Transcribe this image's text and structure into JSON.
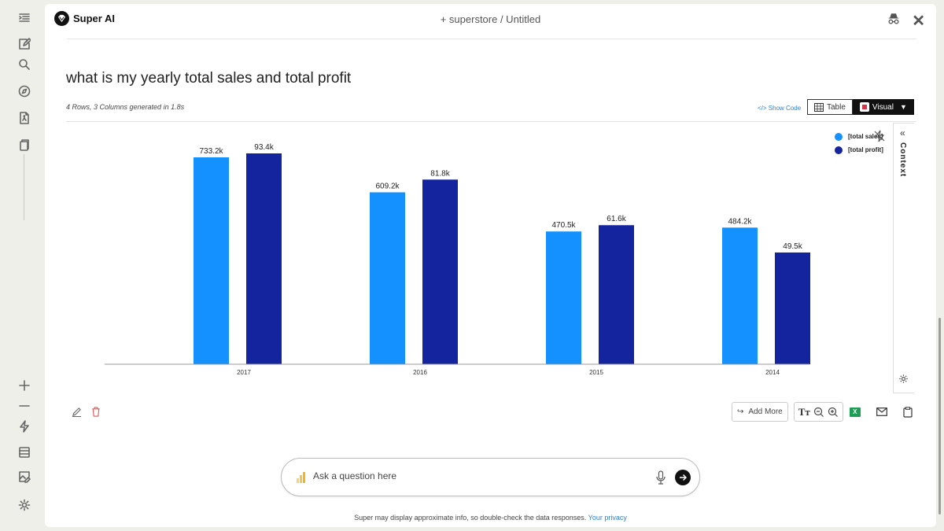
{
  "app": {
    "name": "Super AI",
    "breadcrumb": "+ superstore / Untitled"
  },
  "question": "what is my yearly total sales and total profit",
  "meta": "4 Rows, 3 Columns generated in 1.8s",
  "view": {
    "show_code": "</> Show Code",
    "table_label": "Table",
    "visual_label": "Visual"
  },
  "context_panel": {
    "label": "Context"
  },
  "actions": {
    "add_more": "Add More",
    "text_size": "Tт"
  },
  "ask": {
    "placeholder": "Ask a question here"
  },
  "footer": {
    "disclaimer": "Super may display approximate info, so double-check the data responses.",
    "privacy_link": "Your privacy"
  },
  "icons": [
    "sidebar-toggle-icon",
    "new-note-icon",
    "search-icon",
    "compass-icon",
    "pdf-icon",
    "pages-icon",
    "plus-icon",
    "minus-icon",
    "lightning-icon",
    "table-icon",
    "image-edit-icon",
    "settings-icon",
    "incognito-icon",
    "close-icon",
    "bolt-off-icon",
    "gear-icon",
    "pencil-icon",
    "trash-icon",
    "zoom-out-icon",
    "zoom-in-icon",
    "excel-icon",
    "mail-icon",
    "clipboard-icon",
    "mic-icon",
    "send-icon",
    "powerbi-icon"
  ],
  "colors": {
    "sales": "#1590ff",
    "profit": "#14239e",
    "accent": "#2f7fd1"
  },
  "chart_data": {
    "type": "bar",
    "categories": [
      "2017",
      "2016",
      "2015",
      "2014"
    ],
    "series": [
      {
        "name": "[total sales]",
        "values": [
          733.2,
          609.2,
          470.5,
          484.2
        ],
        "labels": [
          "733.2k",
          "609.2k",
          "470.5k",
          "484.2k"
        ]
      },
      {
        "name": "[total profit]",
        "values": [
          93.4,
          81.8,
          61.6,
          49.5
        ],
        "labels": [
          "93.4k",
          "81.8k",
          "61.6k",
          "49.5k"
        ]
      }
    ],
    "title": "",
    "xlabel": "",
    "ylabel": "",
    "legend": "top-right",
    "grid": false
  }
}
